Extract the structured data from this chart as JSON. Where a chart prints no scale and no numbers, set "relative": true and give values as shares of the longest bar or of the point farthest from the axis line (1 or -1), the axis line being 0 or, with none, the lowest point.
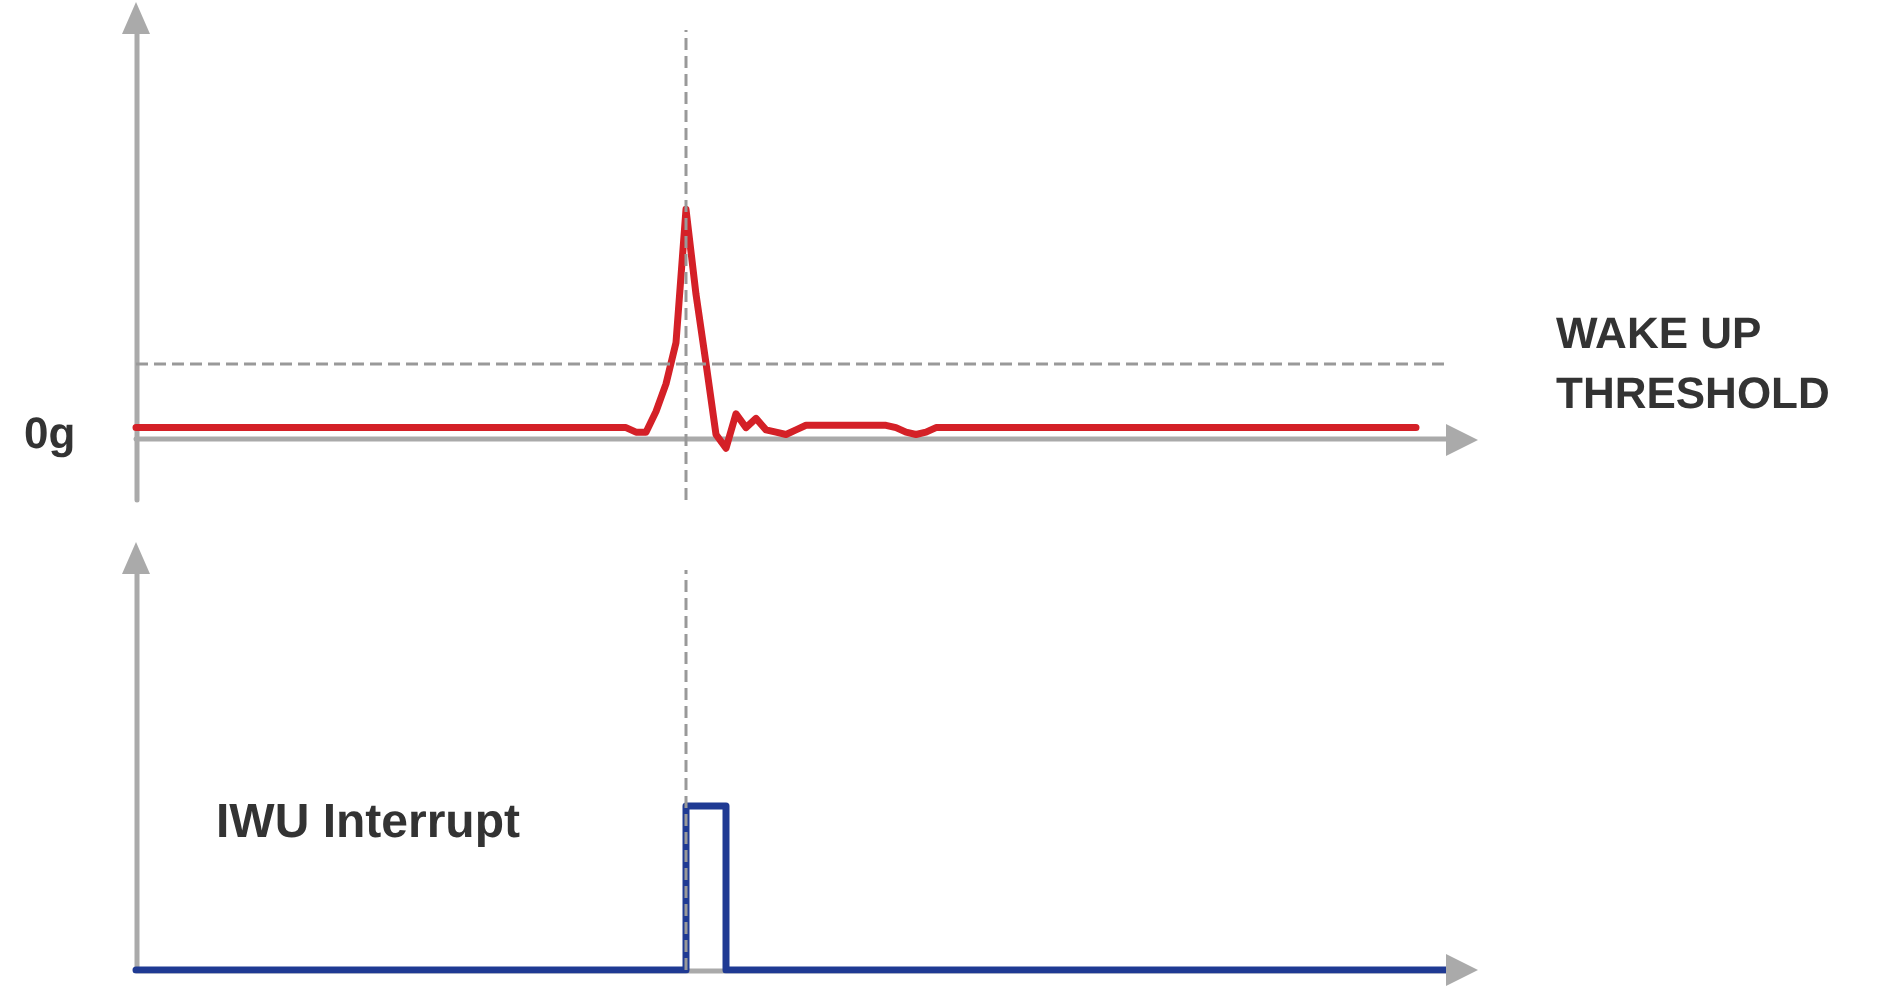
{
  "chart_data": [
    {
      "type": "line",
      "relative": true,
      "line_style": "solid",
      "annotations": [
        "0g"
      ],
      "ref_lines": [
        {
          "axis": "y",
          "value": 0.33,
          "label": "WAKE UP THRESHOLD",
          "color": "#999999",
          "line_style": "dashed"
        }
      ],
      "categories": [
        null,
        null,
        null,
        null,
        null,
        null,
        null,
        null,
        null,
        null,
        null,
        null,
        null,
        null,
        null,
        null,
        null,
        null,
        null,
        null,
        null,
        null,
        null,
        null,
        null,
        null,
        null,
        null,
        null,
        null,
        null,
        null,
        null,
        null,
        null,
        null,
        null,
        null,
        null,
        null,
        null,
        null,
        null,
        null,
        null,
        null,
        null,
        null,
        null,
        null,
        null,
        null,
        null,
        null,
        null,
        null,
        null,
        null,
        null,
        null,
        null,
        null,
        null,
        null,
        null,
        null,
        null,
        null,
        null,
        null,
        null,
        null,
        null,
        null,
        null,
        null,
        null,
        null,
        null,
        null,
        null,
        null,
        null,
        null,
        null,
        null,
        null,
        null,
        null,
        null,
        null,
        null,
        null,
        null,
        null,
        null,
        null,
        null,
        null,
        null,
        null,
        null,
        null,
        null,
        null,
        null,
        null,
        null,
        null,
        null,
        null,
        null,
        null,
        null,
        null,
        null,
        null,
        null,
        null,
        null,
        null,
        null,
        null,
        null,
        null,
        null,
        null,
        null,
        null,
        null,
        null,
        null
      ],
      "series": [
        {
          "color": "#d42027",
          "values": [
            0.05,
            0.05,
            0.05,
            0.05,
            0.05,
            0.05,
            0.05,
            0.05,
            0.05,
            0.05,
            0.05,
            0.05,
            0.05,
            0.05,
            0.05,
            0.05,
            0.05,
            0.05,
            0.05,
            0.05,
            0.05,
            0.05,
            0.05,
            0.05,
            0.05,
            0.05,
            0.05,
            0.05,
            0.05,
            0.05,
            0.05,
            0.05,
            0.05,
            0.05,
            0.05,
            0.05,
            0.05,
            0.05,
            0.05,
            0.05,
            0.05,
            0.05,
            0.05,
            0.05,
            0.05,
            0.05,
            0.05,
            0.05,
            0.05,
            0.05,
            0.03,
            0.03,
            0.12,
            0.24,
            0.42,
            1,
            0.63,
            0.33,
            0.02,
            -0.04,
            0.11,
            0.05,
            0.09,
            0.04,
            0.03,
            0.02,
            0.04,
            0.06,
            0.06,
            0.06,
            0.06,
            0.06,
            0.06,
            0.06,
            0.06,
            0.06,
            0.05,
            0.03,
            0.02,
            0.03,
            0.05,
            0.05,
            0.05,
            0.05,
            0.05,
            0.05,
            0.05,
            0.05,
            0.05,
            0.05,
            0.05,
            0.05,
            0.05,
            0.05,
            0.05,
            0.05,
            0.05,
            0.05,
            0.05,
            0.05,
            0.05,
            0.05,
            0.05,
            0.05,
            0.05,
            0.05,
            0.05,
            0.05,
            0.05,
            0.05,
            0.05,
            0.05,
            0.05,
            0.05,
            0.05,
            0.05,
            0.05,
            0.05,
            0.05,
            0.05,
            0.05,
            0.05,
            0.05,
            0.05,
            0.05,
            0.05,
            0.05,
            0.05,
            0.05,
            null,
            null,
            null
          ]
        }
      ]
    },
    {
      "type": "step",
      "relative": true,
      "line_style": "solid",
      "annotations": [
        "IWU Interrupt"
      ],
      "categories": [
        null,
        null,
        null,
        null,
        null,
        null,
        null,
        null,
        null,
        null,
        null,
        null,
        null,
        null,
        null,
        null,
        null,
        null,
        null,
        null,
        null,
        null,
        null,
        null,
        null,
        null,
        null,
        null,
        null,
        null,
        null,
        null,
        null,
        null,
        null,
        null,
        null,
        null,
        null,
        null,
        null,
        null,
        null,
        null,
        null,
        null,
        null,
        null,
        null,
        null,
        null,
        null,
        null,
        null,
        null,
        null,
        null,
        null,
        null,
        null,
        null,
        null,
        null,
        null,
        null,
        null,
        null,
        null,
        null,
        null,
        null,
        null,
        null,
        null,
        null,
        null,
        null,
        null,
        null,
        null,
        null,
        null,
        null,
        null,
        null,
        null,
        null,
        null,
        null,
        null,
        null,
        null,
        null,
        null,
        null,
        null,
        null,
        null,
        null,
        null,
        null,
        null,
        null,
        null,
        null,
        null,
        null,
        null,
        null,
        null,
        null,
        null,
        null,
        null,
        null,
        null,
        null,
        null,
        null,
        null,
        null,
        null,
        null,
        null,
        null,
        null,
        null,
        null,
        null,
        null,
        null,
        null
      ],
      "series": [
        {
          "color": "#1f3a93",
          "values": [
            0,
            0,
            0,
            0,
            0,
            0,
            0,
            0,
            0,
            0,
            0,
            0,
            0,
            0,
            0,
            0,
            0,
            0,
            0,
            0,
            0,
            0,
            0,
            0,
            0,
            0,
            0,
            0,
            0,
            0,
            0,
            0,
            0,
            0,
            0,
            0,
            0,
            0,
            0,
            0,
            0,
            0,
            0,
            0,
            0,
            0,
            0,
            0,
            0,
            0,
            0,
            0,
            0,
            0,
            0,
            1,
            1,
            1,
            1,
            0,
            0,
            0,
            0,
            0,
            0,
            0,
            0,
            0,
            0,
            0,
            0,
            0,
            0,
            0,
            0,
            0,
            0,
            0,
            0,
            0,
            0,
            0,
            0,
            0,
            0,
            0,
            0,
            0,
            0,
            0,
            0,
            0,
            0,
            0,
            0,
            0,
            0,
            0,
            0,
            0,
            0,
            0,
            0,
            0,
            0,
            0,
            0,
            0,
            0,
            0,
            0,
            0,
            0,
            0,
            0,
            0,
            0,
            0,
            0,
            0,
            0,
            0,
            0,
            0,
            0,
            0,
            0,
            0,
            0,
            0,
            0,
            0
          ]
        }
      ]
    }
  ]
}
